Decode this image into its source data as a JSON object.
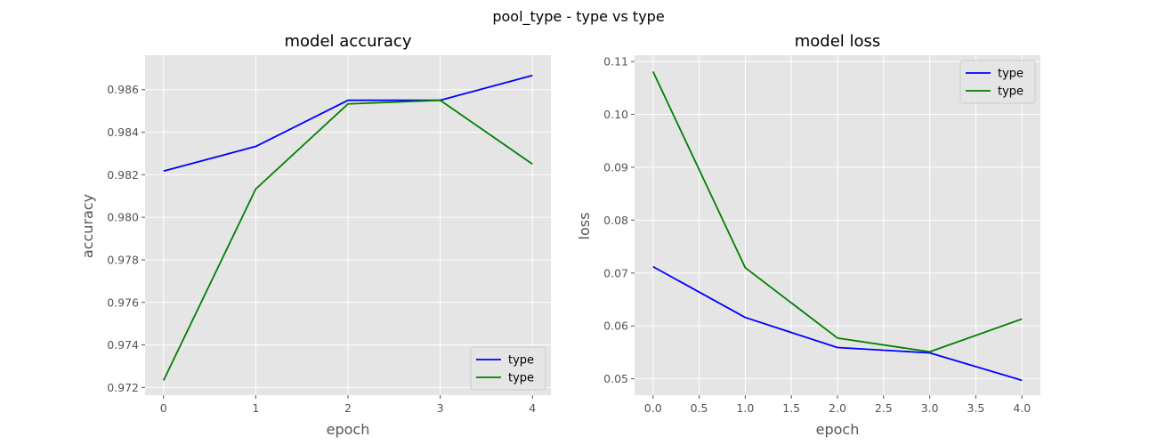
{
  "suptitle": "pool_type - type vs type",
  "colors": {
    "series1": "#0000ff",
    "series2": "#008000",
    "panel_bg": "#e5e5e5",
    "grid": "#ffffff"
  },
  "chart_data": [
    {
      "type": "line",
      "title": "model accuracy",
      "xlabel": "epoch",
      "ylabel": "accuracy",
      "x": [
        0,
        1,
        2,
        3,
        4
      ],
      "xticks": [
        0,
        1,
        2,
        3,
        4
      ],
      "xtick_labels": [
        "0",
        "1",
        "2",
        "3",
        "4"
      ],
      "xlim": [
        -0.2,
        4.2
      ],
      "yticks": [
        0.972,
        0.974,
        0.976,
        0.978,
        0.98,
        0.982,
        0.984,
        0.986
      ],
      "ytick_labels": [
        "0.972",
        "0.974",
        "0.976",
        "0.978",
        "0.980",
        "0.982",
        "0.984",
        "0.986"
      ],
      "ylim": [
        0.97164,
        0.98762
      ],
      "grid": true,
      "legend": "lower right",
      "series": [
        {
          "name": "type",
          "color": "#0000ff",
          "values": [
            0.98217,
            0.98333,
            0.9855,
            0.9855,
            0.98667
          ]
        },
        {
          "name": "type",
          "color": "#008000",
          "values": [
            0.97233,
            0.98133,
            0.98533,
            0.9855,
            0.9825
          ]
        }
      ]
    },
    {
      "type": "line",
      "title": "model loss",
      "xlabel": "epoch",
      "ylabel": "loss",
      "x": [
        0,
        1,
        2,
        3,
        4
      ],
      "xticks": [
        0.0,
        0.5,
        1.0,
        1.5,
        2.0,
        2.5,
        3.0,
        3.5,
        4.0
      ],
      "xtick_labels": [
        "0.0",
        "0.5",
        "1.0",
        "1.5",
        "2.0",
        "2.5",
        "3.0",
        "3.5",
        "4.0"
      ],
      "xlim": [
        -0.2,
        4.2
      ],
      "yticks": [
        0.05,
        0.06,
        0.07,
        0.08,
        0.09,
        0.1,
        0.11
      ],
      "ytick_labels": [
        "0.05",
        "0.06",
        "0.07",
        "0.08",
        "0.09",
        "0.10",
        "0.11"
      ],
      "ylim": [
        0.0469,
        0.1112
      ],
      "grid": true,
      "legend": "upper right",
      "series": [
        {
          "name": "type",
          "color": "#0000ff",
          "values": [
            0.0712,
            0.0616,
            0.0559,
            0.0549,
            0.0497
          ]
        },
        {
          "name": "type",
          "color": "#008000",
          "values": [
            0.1081,
            0.071,
            0.0577,
            0.0551,
            0.0613
          ]
        }
      ]
    }
  ]
}
